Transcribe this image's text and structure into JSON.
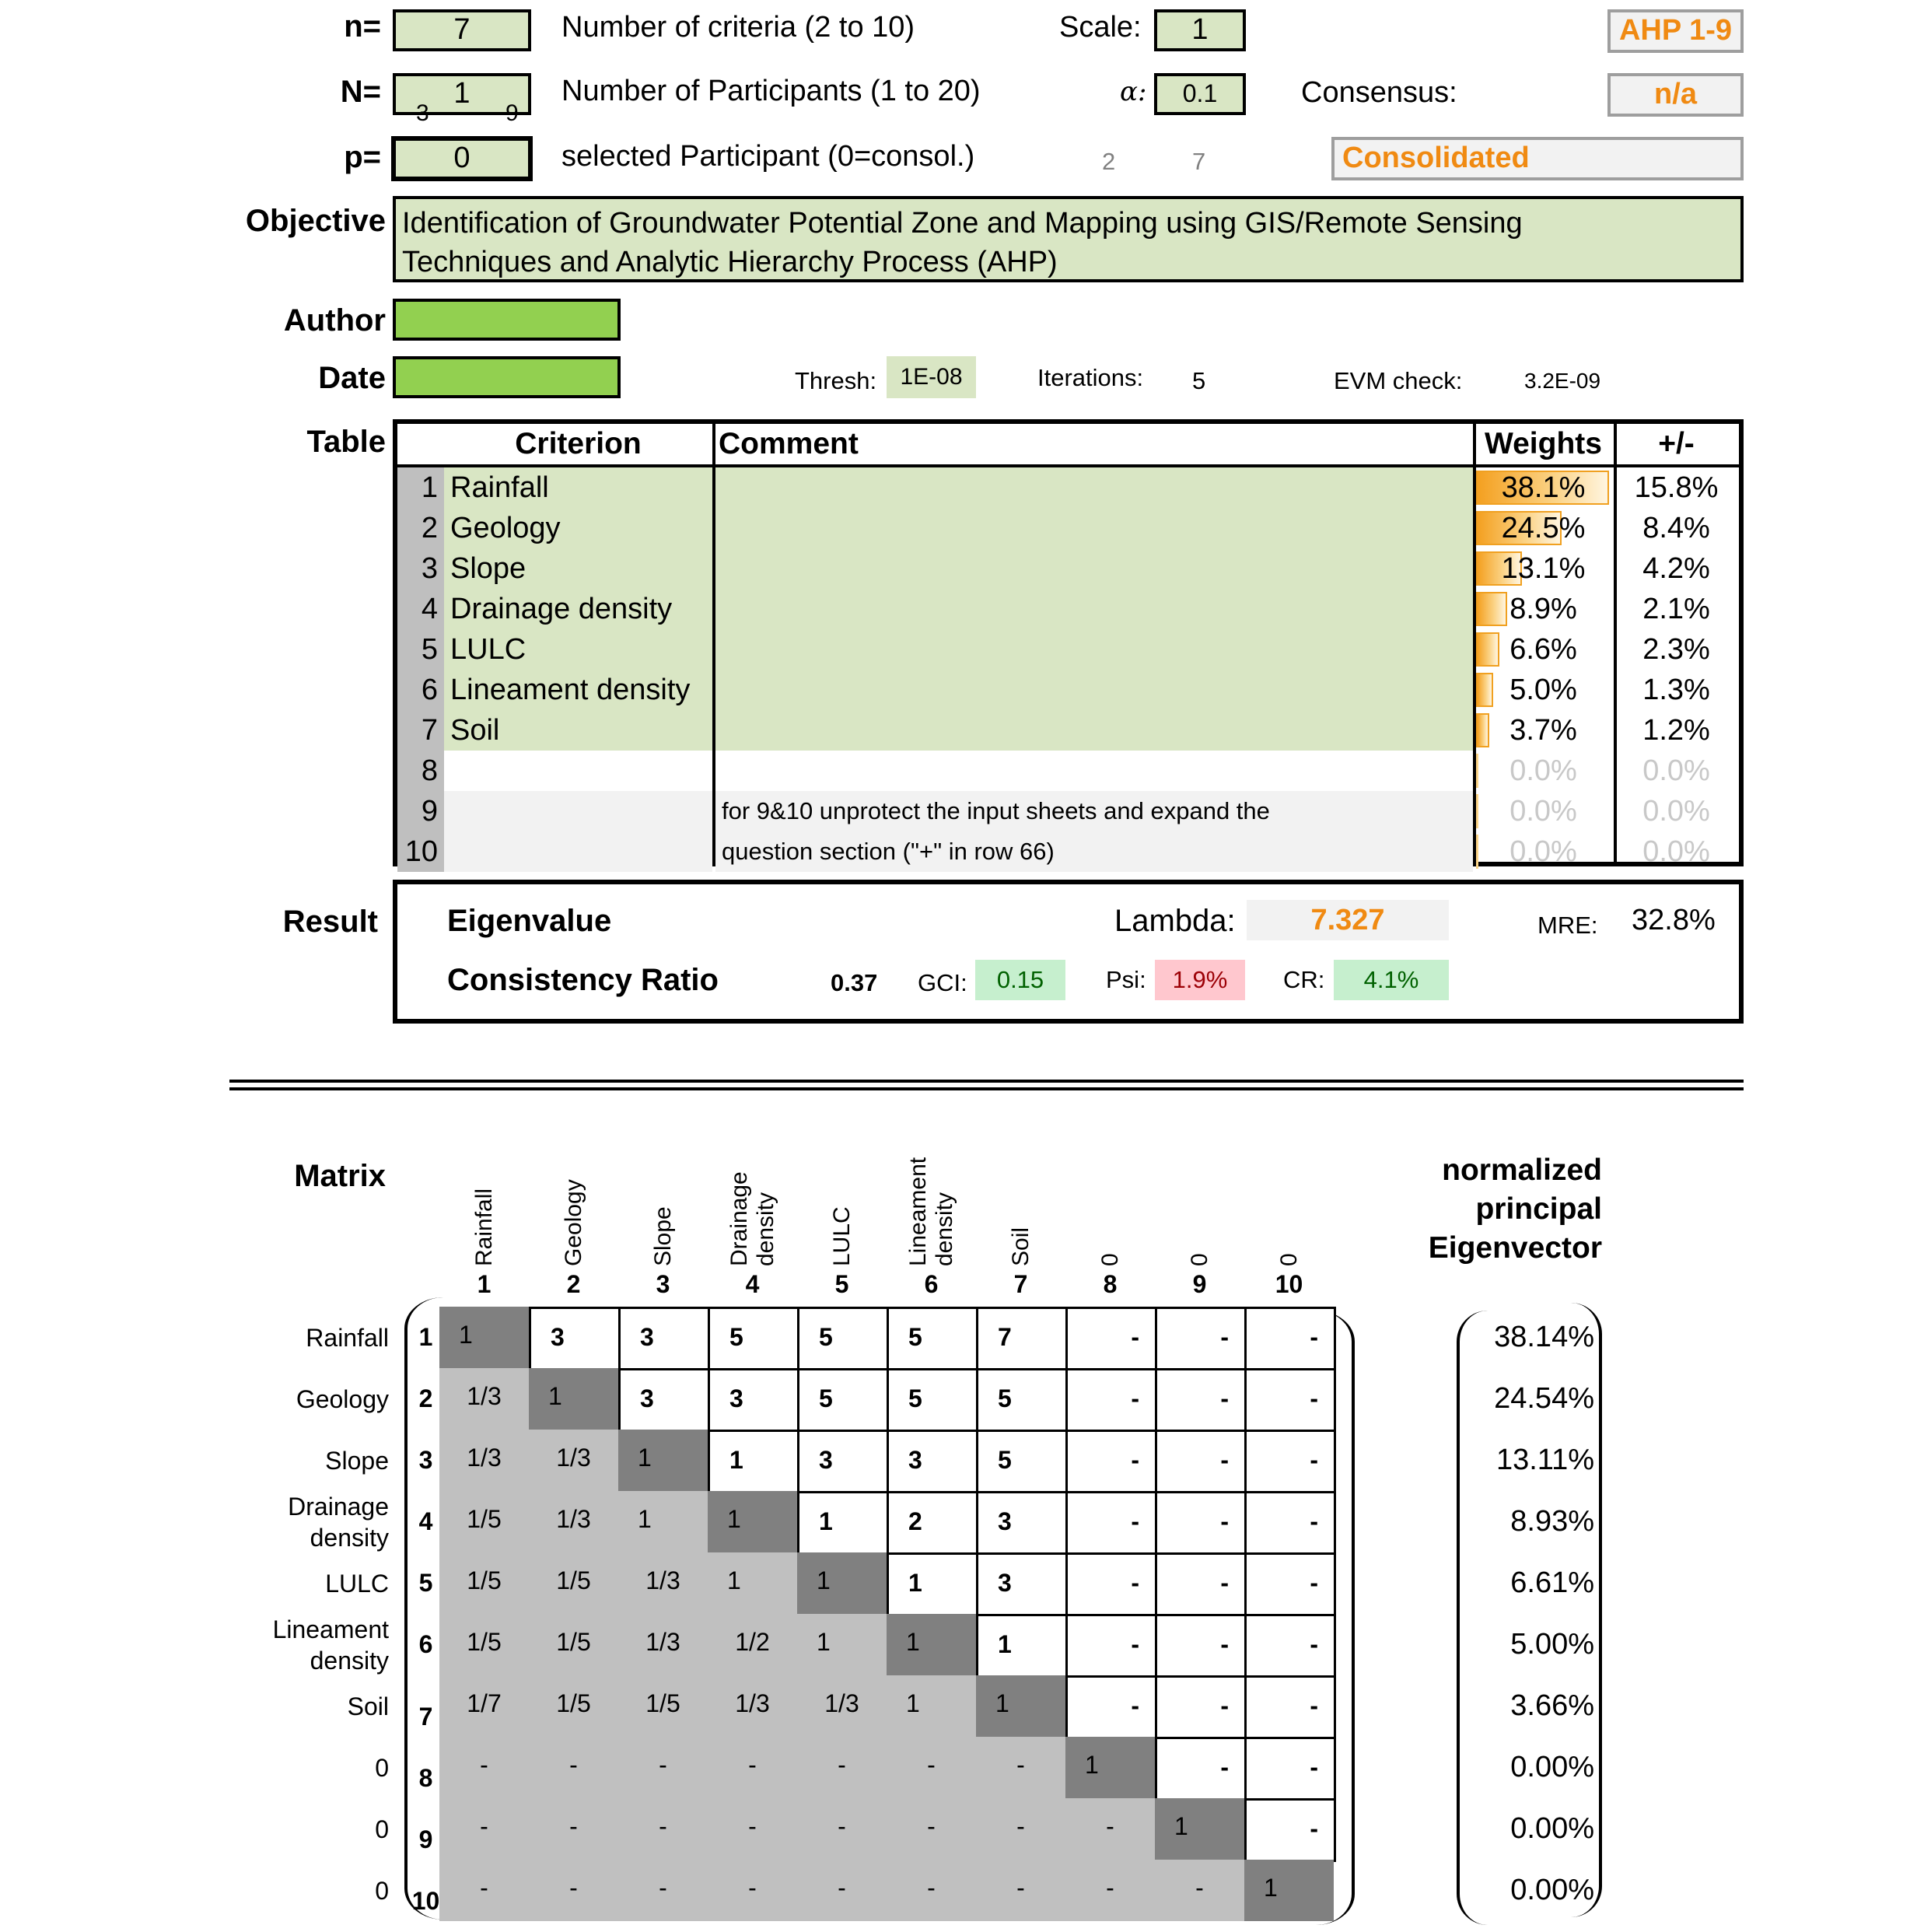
{
  "header": {
    "n_label": "n=",
    "n_value": "7",
    "n_desc": "Number of criteria (2 to 10)",
    "scale_label": "Scale:",
    "scale_value": "1",
    "scale_badge": "AHP 1-9",
    "N_label": "N=",
    "N_value": "1",
    "N_desc": "Number of Participants (1 to 20)",
    "alpha_label": "α:",
    "alpha_value": "0.1",
    "consensus_label": "Consensus:",
    "consensus_value": "n/a",
    "N_hint_left": "3",
    "N_hint_right": "9",
    "p_label": "p=",
    "p_value": "0",
    "p_desc": "selected Participant (0=consol.)",
    "p_hint_left": "2",
    "p_hint_right": "7",
    "participant_badge": "Consolidated",
    "objective_label": "Objective",
    "objective_line1": "Identification of Groundwater Potential Zone and Mapping using GIS/Remote Sensing",
    "objective_line2": "Techniques and Analytic Hierarchy Process (AHP)",
    "author_label": "Author",
    "date_label": "Date",
    "thresh_label": "Thresh:",
    "thresh_value": "1E-08",
    "iterations_label": "Iterations:",
    "iterations_value": "5",
    "evm_label": "EVM check:",
    "evm_value": "3.2E-09"
  },
  "table": {
    "label": "Table",
    "headers": {
      "criterion": "Criterion",
      "comment": "Comment",
      "weights": "Weights",
      "pm": "+/-"
    },
    "rows": [
      {
        "num": "1",
        "name": "Rainfall",
        "comment": "",
        "weight": "38.1%",
        "w": 0.381,
        "pm": "15.8%"
      },
      {
        "num": "2",
        "name": "Geology",
        "comment": "",
        "weight": "24.5%",
        "w": 0.245,
        "pm": "8.4%"
      },
      {
        "num": "3",
        "name": "Slope",
        "comment": "",
        "weight": "13.1%",
        "w": 0.131,
        "pm": "4.2%"
      },
      {
        "num": "4",
        "name": "Drainage density",
        "comment": "",
        "weight": "8.9%",
        "w": 0.089,
        "pm": "2.1%"
      },
      {
        "num": "5",
        "name": "LULC",
        "comment": "",
        "weight": "6.6%",
        "w": 0.066,
        "pm": "2.3%"
      },
      {
        "num": "6",
        "name": "Lineament density",
        "comment": "",
        "weight": "5.0%",
        "w": 0.05,
        "pm": "1.3%"
      },
      {
        "num": "7",
        "name": "Soil",
        "comment": "",
        "weight": "3.7%",
        "w": 0.037,
        "pm": "1.2%"
      },
      {
        "num": "8",
        "name": "",
        "comment": "",
        "weight": "0.0%",
        "w": 0,
        "pm": "0.0%"
      },
      {
        "num": "9",
        "name": "",
        "comment": "for 9&10 unprotect the input sheets and expand the",
        "weight": "0.0%",
        "w": 0,
        "pm": "0.0%"
      },
      {
        "num": "10",
        "name": "",
        "comment": "question section (\"+\" in row 66)",
        "weight": "0.0%",
        "w": 0,
        "pm": "0.0%"
      }
    ]
  },
  "result": {
    "label": "Result",
    "eigenvalue_label": "Eigenvalue",
    "lambda_label": "Lambda:",
    "lambda_value": "7.327",
    "mre_label": "MRE:",
    "mre_value": "32.8%",
    "cr_section_label": "Consistency Ratio",
    "cr_section_value": "0.37",
    "gci_label": "GCI:",
    "gci_value": "0.15",
    "psi_label": "Psi:",
    "psi_value": "1.9%",
    "cr_label": "CR:",
    "cr_value": "4.1%"
  },
  "matrix": {
    "label": "Matrix",
    "eig_title": [
      "normalized",
      "principal",
      "Eigenvector"
    ],
    "col_headers": [
      {
        "lines": [
          "Rainfall"
        ],
        "num": "1"
      },
      {
        "lines": [
          "Geology"
        ],
        "num": "2"
      },
      {
        "lines": [
          "Slope"
        ],
        "num": "3"
      },
      {
        "lines": [
          "Drainage",
          "density"
        ],
        "num": "4"
      },
      {
        "lines": [
          "LULC"
        ],
        "num": "5"
      },
      {
        "lines": [
          "Lineament",
          "density"
        ],
        "num": "6"
      },
      {
        "lines": [
          "Soil"
        ],
        "num": "7"
      },
      {
        "lines": [
          "0"
        ],
        "num": "8"
      },
      {
        "lines": [
          "0"
        ],
        "num": "9"
      },
      {
        "lines": [
          "0"
        ],
        "num": "10"
      }
    ],
    "row_labels": [
      {
        "lines": [
          "Rainfall"
        ],
        "num": "1"
      },
      {
        "lines": [
          "Geology"
        ],
        "num": "2"
      },
      {
        "lines": [
          "Slope"
        ],
        "num": "3"
      },
      {
        "lines": [
          "Drainage",
          "density"
        ],
        "num": "4"
      },
      {
        "lines": [
          "LULC"
        ],
        "num": "5"
      },
      {
        "lines": [
          "Lineament",
          "density"
        ],
        "num": "6"
      },
      {
        "lines": [
          "Soil"
        ],
        "num": "7"
      },
      {
        "lines": [
          "0"
        ],
        "num": "8"
      },
      {
        "lines": [
          "0"
        ],
        "num": "9"
      },
      {
        "lines": [
          "0"
        ],
        "num": "10"
      }
    ],
    "cells": [
      [
        "1",
        "3",
        "3",
        "5",
        "5",
        "5",
        "7",
        "-",
        "-",
        "-"
      ],
      [
        "1/3",
        "1",
        "3",
        "3",
        "5",
        "5",
        "5",
        "-",
        "-",
        "-"
      ],
      [
        "1/3",
        "1/3",
        "1",
        "1",
        "3",
        "3",
        "5",
        "-",
        "-",
        "-"
      ],
      [
        "1/5",
        "1/3",
        "1",
        "1",
        "1",
        "2",
        "3",
        "-",
        "-",
        "-"
      ],
      [
        "1/5",
        "1/5",
        "1/3",
        "1",
        "1",
        "1",
        "3",
        "-",
        "-",
        "-"
      ],
      [
        "1/5",
        "1/5",
        "1/3",
        "1/2",
        "1",
        "1",
        "1",
        "-",
        "-",
        "-"
      ],
      [
        "1/7",
        "1/5",
        "1/5",
        "1/3",
        "1/3",
        "1",
        "1",
        "-",
        "-",
        "-"
      ],
      [
        "-",
        "-",
        "-",
        "-",
        "-",
        "-",
        "-",
        "1",
        "-",
        "-"
      ],
      [
        "-",
        "-",
        "-",
        "-",
        "-",
        "-",
        "-",
        "-",
        "1",
        "-"
      ],
      [
        "-",
        "-",
        "-",
        "-",
        "-",
        "-",
        "-",
        "-",
        "-",
        "1"
      ]
    ],
    "eigenvector": [
      "38.14%",
      "24.54%",
      "13.11%",
      "8.93%",
      "6.61%",
      "5.00%",
      "3.66%",
      "0.00%",
      "0.00%",
      "0.00%"
    ]
  }
}
